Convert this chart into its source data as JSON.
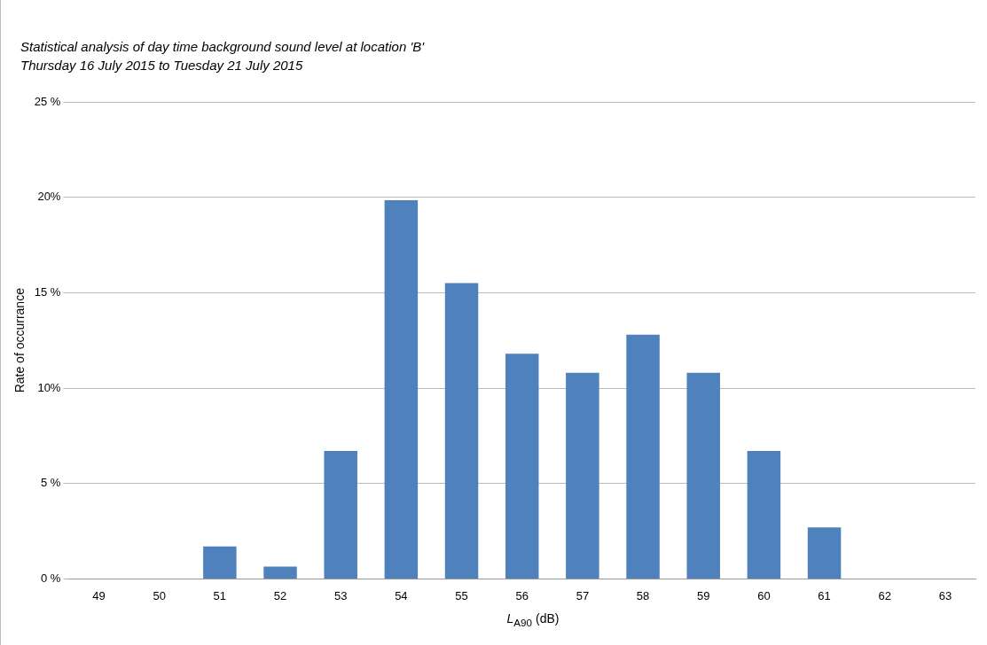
{
  "chart_data": {
    "type": "bar",
    "subtitle": "Statistical analysis of day time background sound level at location 'B'\nThursday 16 July 2015 to Tuesday 21 July 2015",
    "xlabel": "L$_{A90}$ (dB)",
    "ylabel": "Rate of occurrance",
    "categories": [
      "49",
      "50",
      "51",
      "52",
      "53",
      "54",
      "55",
      "56",
      "57",
      "58",
      "59",
      "60",
      "61",
      "62",
      "63"
    ],
    "values": [
      0,
      0,
      1.7,
      0.65,
      6.7,
      19.85,
      15.5,
      11.8,
      10.8,
      12.8,
      10.8,
      6.7,
      2.7,
      0,
      0
    ],
    "color": "#4f81bd",
    "ylim": [
      0,
      25
    ],
    "yticks": [
      {
        "value": 0,
        "label": "0 %"
      },
      {
        "value": 5,
        "label": "5 %"
      },
      {
        "value": 10,
        "label": "10%"
      },
      {
        "value": 15,
        "label": "15 %"
      },
      {
        "value": 20,
        "label": "20%"
      },
      {
        "value": 25,
        "label": "25 %"
      }
    ],
    "grid": "y",
    "legend": false
  }
}
